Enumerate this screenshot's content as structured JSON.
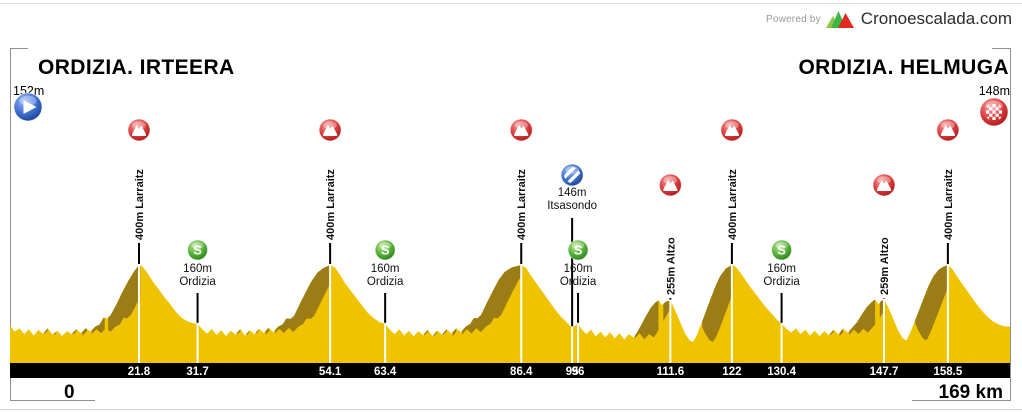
{
  "powered_by": {
    "label": "Powered by",
    "brand": "Cronoescalada.com"
  },
  "header": {
    "start_title": "ORDIZIA. IRTEERA",
    "start_elevation": "152m",
    "finish_title": "ORDIZIA. HELMUGA",
    "finish_elevation": "148m"
  },
  "axis": {
    "start_label": "0",
    "end_label": "169 km"
  },
  "colors": {
    "profile_yellow": "#F0C300",
    "profile_shadow": "#9C7C14",
    "bar_black": "#000000",
    "frame_gray": "#8f8f8f",
    "climb_red": "#C42020",
    "sprint_green": "#2F8A20",
    "pass_blue": "#1C479E",
    "label_text": "#111111"
  },
  "chart_data": {
    "type": "area",
    "x_unit": "km",
    "y_unit": "m",
    "x_range": [
      0,
      169
    ],
    "start": {
      "name": "ORDIZIA. IRTEERA",
      "elevation_m": 152,
      "elevation_label": "152m"
    },
    "finish": {
      "name": "ORDIZIA. HELMUGA",
      "elevation_m": 148,
      "elevation_label": "148m"
    },
    "markers": [
      {
        "type": "climb",
        "km": 21.8,
        "km_label": "21.8",
        "elevation_m": 400,
        "elevation_label": "400m",
        "name": "Larraitz"
      },
      {
        "type": "sprint",
        "km": 31.7,
        "km_label": "31.7",
        "elevation_m": 160,
        "elevation_label": "160m",
        "name": "Ordizia"
      },
      {
        "type": "climb",
        "km": 54.1,
        "km_label": "54.1",
        "elevation_m": 400,
        "elevation_label": "400m",
        "name": "Larraitz"
      },
      {
        "type": "sprint",
        "km": 63.4,
        "km_label": "63.4",
        "elevation_m": 160,
        "elevation_label": "160m",
        "name": "Ordizia"
      },
      {
        "type": "climb",
        "km": 86.4,
        "km_label": "86.4",
        "elevation_m": 400,
        "elevation_label": "400m",
        "name": "Larraitz"
      },
      {
        "type": "pass",
        "km": 95,
        "km_label": "95",
        "elevation_m": 146,
        "elevation_label": "146m",
        "name": "Itsasondo"
      },
      {
        "type": "sprint",
        "km": 96,
        "km_label": "96",
        "elevation_m": 160,
        "elevation_label": "160m",
        "name": "Ordizia"
      },
      {
        "type": "climb",
        "km": 111.6,
        "km_label": "111.6",
        "elevation_m": 255,
        "elevation_label": "255m",
        "name": "Altzo"
      },
      {
        "type": "climb",
        "km": 122,
        "km_label": "122",
        "elevation_m": 400,
        "elevation_label": "400m",
        "name": "Larraitz"
      },
      {
        "type": "sprint",
        "km": 130.4,
        "km_label": "130.4",
        "elevation_m": 160,
        "elevation_label": "160m",
        "name": "Ordizia"
      },
      {
        "type": "climb",
        "km": 147.7,
        "km_label": "147.7",
        "elevation_m": 259,
        "elevation_label": "259m",
        "name": "Altzo"
      },
      {
        "type": "climb",
        "km": 158.5,
        "km_label": "158.5",
        "elevation_m": 400,
        "elevation_label": "400m",
        "name": "Larraitz"
      }
    ],
    "profile": [
      [
        0,
        152
      ],
      [
        0.8,
        128
      ],
      [
        1.6,
        142
      ],
      [
        2.4,
        118
      ],
      [
        3.2,
        138
      ],
      [
        4,
        112
      ],
      [
        4.8,
        135
      ],
      [
        5.6,
        120
      ],
      [
        6.4,
        142
      ],
      [
        7.2,
        115
      ],
      [
        8,
        132
      ],
      [
        8.8,
        110
      ],
      [
        9.6,
        130
      ],
      [
        10.4,
        118
      ],
      [
        11.2,
        138
      ],
      [
        12,
        122
      ],
      [
        12.8,
        142
      ],
      [
        13.6,
        128
      ],
      [
        14.4,
        148
      ],
      [
        15.2,
        158
      ],
      [
        15.8,
        185
      ],
      [
        16.4,
        182
      ],
      [
        17,
        195
      ],
      [
        18,
        240
      ],
      [
        19,
        290
      ],
      [
        20,
        335
      ],
      [
        21,
        375
      ],
      [
        21.8,
        400
      ],
      [
        22.4,
        394
      ],
      [
        23.2,
        368
      ],
      [
        24,
        338
      ],
      [
        25,
        305
      ],
      [
        26,
        272
      ],
      [
        27,
        242
      ],
      [
        28,
        210
      ],
      [
        29,
        185
      ],
      [
        30,
        170
      ],
      [
        31,
        162
      ],
      [
        31.7,
        160
      ],
      [
        32.5,
        138
      ],
      [
        33.3,
        120
      ],
      [
        34.1,
        140
      ],
      [
        34.9,
        114
      ],
      [
        35.7,
        134
      ],
      [
        36.5,
        110
      ],
      [
        37.3,
        132
      ],
      [
        38.1,
        116
      ],
      [
        38.9,
        138
      ],
      [
        39.7,
        112
      ],
      [
        40.5,
        134
      ],
      [
        41.3,
        118
      ],
      [
        42.1,
        140
      ],
      [
        42.9,
        122
      ],
      [
        43.7,
        144
      ],
      [
        44.5,
        126
      ],
      [
        45.3,
        148
      ],
      [
        46.1,
        158
      ],
      [
        46.7,
        182
      ],
      [
        47.4,
        180
      ],
      [
        48,
        192
      ],
      [
        49,
        242
      ],
      [
        50,
        290
      ],
      [
        51,
        336
      ],
      [
        52,
        370
      ],
      [
        53,
        388
      ],
      [
        54.1,
        400
      ],
      [
        54.9,
        390
      ],
      [
        55.7,
        362
      ],
      [
        56.5,
        330
      ],
      [
        57.5,
        298
      ],
      [
        58.5,
        266
      ],
      [
        59.5,
        234
      ],
      [
        60.5,
        204
      ],
      [
        61.5,
        182
      ],
      [
        62.5,
        166
      ],
      [
        63.4,
        160
      ],
      [
        64.2,
        136
      ],
      [
        65,
        118
      ],
      [
        65.8,
        138
      ],
      [
        66.6,
        112
      ],
      [
        67.4,
        132
      ],
      [
        68.2,
        108
      ],
      [
        69,
        130
      ],
      [
        69.8,
        114
      ],
      [
        70.6,
        136
      ],
      [
        71.4,
        110
      ],
      [
        72.2,
        132
      ],
      [
        73,
        116
      ],
      [
        73.8,
        138
      ],
      [
        74.6,
        120
      ],
      [
        75.4,
        142
      ],
      [
        76.2,
        126
      ],
      [
        77,
        148
      ],
      [
        77.8,
        160
      ],
      [
        78.4,
        184
      ],
      [
        79,
        182
      ],
      [
        79.6,
        196
      ],
      [
        80.6,
        246
      ],
      [
        81.6,
        294
      ],
      [
        82.6,
        340
      ],
      [
        83.6,
        372
      ],
      [
        84.8,
        390
      ],
      [
        86.4,
        400
      ],
      [
        87.2,
        388
      ],
      [
        88,
        358
      ],
      [
        89,
        324
      ],
      [
        90,
        290
      ],
      [
        91,
        256
      ],
      [
        92,
        222
      ],
      [
        93,
        192
      ],
      [
        94,
        168
      ],
      [
        94.6,
        152
      ],
      [
        95,
        146
      ],
      [
        95.5,
        152
      ],
      [
        96,
        160
      ],
      [
        96.6,
        138
      ],
      [
        97.4,
        118
      ],
      [
        98.2,
        136
      ],
      [
        99,
        108
      ],
      [
        99.8,
        128
      ],
      [
        100.6,
        104
      ],
      [
        101.4,
        126
      ],
      [
        102.2,
        100
      ],
      [
        103,
        122
      ],
      [
        103.8,
        96
      ],
      [
        104.6,
        118
      ],
      [
        105.4,
        104
      ],
      [
        106,
        126
      ],
      [
        106.6,
        152
      ],
      [
        107.4,
        188
      ],
      [
        108.2,
        222
      ],
      [
        109,
        246
      ],
      [
        109.6,
        255
      ],
      [
        110.2,
        236
      ],
      [
        110.8,
        250
      ],
      [
        111.6,
        255
      ],
      [
        112.4,
        216
      ],
      [
        113.2,
        170
      ],
      [
        114,
        124
      ],
      [
        114.8,
        94
      ],
      [
        115.4,
        86
      ],
      [
        116,
        110
      ],
      [
        116.8,
        158
      ],
      [
        117.6,
        210
      ],
      [
        118.4,
        262
      ],
      [
        119.2,
        312
      ],
      [
        120,
        354
      ],
      [
        121,
        386
      ],
      [
        122,
        400
      ],
      [
        122.6,
        394
      ],
      [
        123.4,
        370
      ],
      [
        124.2,
        342
      ],
      [
        125,
        314
      ],
      [
        126,
        282
      ],
      [
        127,
        250
      ],
      [
        128,
        220
      ],
      [
        129,
        194
      ],
      [
        129.8,
        172
      ],
      [
        130.4,
        160
      ],
      [
        131.2,
        140
      ],
      [
        132,
        124
      ],
      [
        132.8,
        142
      ],
      [
        133.6,
        118
      ],
      [
        134.4,
        136
      ],
      [
        135.2,
        112
      ],
      [
        136,
        132
      ],
      [
        136.8,
        110
      ],
      [
        137.6,
        130
      ],
      [
        138.4,
        114
      ],
      [
        139.2,
        136
      ],
      [
        140,
        118
      ],
      [
        140.8,
        140
      ],
      [
        141.6,
        124
      ],
      [
        142.4,
        146
      ],
      [
        143.2,
        168
      ],
      [
        144,
        200
      ],
      [
        144.8,
        228
      ],
      [
        145.6,
        248
      ],
      [
        146.2,
        259
      ],
      [
        146.8,
        240
      ],
      [
        147.2,
        252
      ],
      [
        147.7,
        259
      ],
      [
        148.5,
        224
      ],
      [
        149.3,
        178
      ],
      [
        150.1,
        132
      ],
      [
        150.9,
        100
      ],
      [
        151.5,
        92
      ],
      [
        152.1,
        122
      ],
      [
        152.9,
        170
      ],
      [
        153.7,
        220
      ],
      [
        154.5,
        270
      ],
      [
        155.3,
        318
      ],
      [
        156.1,
        356
      ],
      [
        157,
        382
      ],
      [
        157.8,
        394
      ],
      [
        158.5,
        400
      ],
      [
        159.3,
        382
      ],
      [
        160.1,
        352
      ],
      [
        161,
        320
      ],
      [
        162,
        286
      ],
      [
        163,
        252
      ],
      [
        164,
        220
      ],
      [
        165,
        194
      ],
      [
        166,
        172
      ],
      [
        167,
        158
      ],
      [
        168,
        150
      ],
      [
        169,
        148
      ]
    ]
  }
}
